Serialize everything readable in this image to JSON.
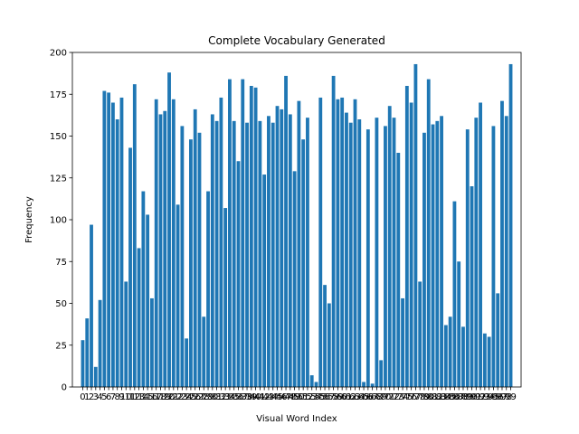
{
  "chart_data": {
    "type": "bar",
    "title": "Complete Vocabulary Generated",
    "xlabel": "Visual Word Index",
    "ylabel": "Frequency",
    "ylim": [
      0,
      200
    ],
    "yticks": [
      0,
      25,
      50,
      75,
      100,
      125,
      150,
      175,
      200
    ],
    "categories": [
      0,
      1,
      2,
      3,
      4,
      5,
      6,
      7,
      8,
      9,
      10,
      11,
      12,
      13,
      14,
      15,
      16,
      17,
      18,
      19,
      20,
      21,
      22,
      23,
      24,
      25,
      26,
      27,
      28,
      29,
      30,
      31,
      32,
      33,
      34,
      35,
      36,
      37,
      38,
      39,
      40,
      41,
      42,
      43,
      44,
      45,
      46,
      47,
      48,
      49,
      50,
      51,
      52,
      53,
      54,
      55,
      56,
      57,
      58,
      59,
      60,
      61,
      62,
      63,
      64,
      65,
      66,
      67,
      68,
      69,
      70,
      71,
      72,
      73,
      74,
      75,
      76,
      77,
      78,
      79,
      80,
      81,
      82,
      83,
      84,
      85,
      86,
      87,
      88,
      89,
      90,
      91,
      92,
      93,
      94,
      95,
      96,
      97,
      98,
      99
    ],
    "values": [
      28,
      41,
      97,
      12,
      52,
      177,
      176,
      170,
      160,
      173,
      63,
      143,
      181,
      83,
      117,
      103,
      53,
      172,
      163,
      165,
      188,
      172,
      109,
      156,
      29,
      148,
      166,
      152,
      42,
      117,
      163,
      159,
      173,
      107,
      184,
      159,
      135,
      184,
      158,
      180,
      179,
      159,
      127,
      162,
      158,
      168,
      166,
      186,
      163,
      129,
      171,
      148,
      161,
      7,
      3,
      173,
      61,
      50,
      186,
      172,
      173,
      164,
      158,
      172,
      160,
      3,
      154,
      2,
      161,
      16,
      156,
      168,
      161,
      140,
      53,
      180,
      170,
      193,
      63,
      152,
      184,
      157,
      159,
      162,
      37,
      42,
      111,
      75,
      36,
      154,
      120,
      161,
      170,
      32,
      30,
      156,
      56,
      171,
      162,
      193
    ],
    "color": "#1f77b4"
  }
}
